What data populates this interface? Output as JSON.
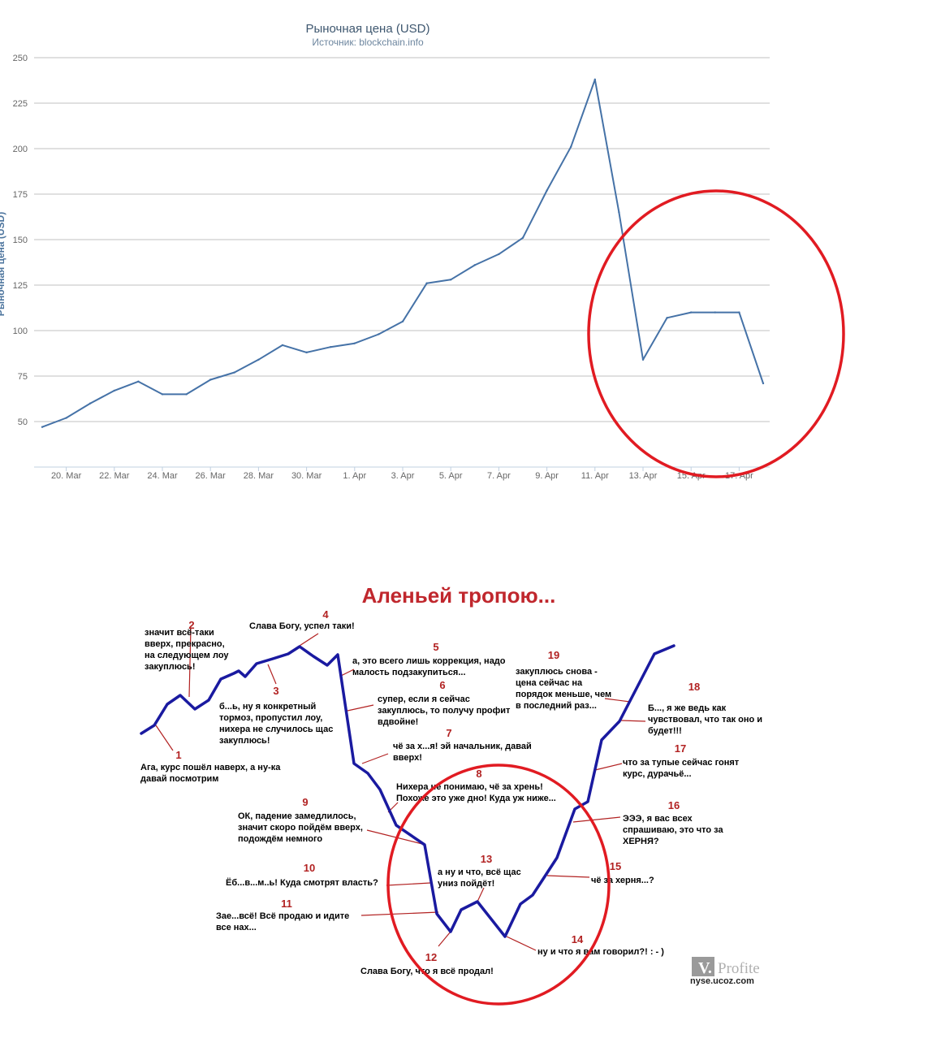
{
  "chart_data": {
    "type": "line",
    "title": "Рыночная цена (USD)",
    "subtitle": "Источник: blockchain.info",
    "ylabel": "Рыночная цена (USD)",
    "ylim": [
      25,
      250
    ],
    "yticks": [
      50,
      75,
      100,
      125,
      150,
      175,
      200,
      225,
      250
    ],
    "grid": true,
    "x_tick_labels": [
      "20. Mar",
      "22. Mar",
      "24. Mar",
      "26. Mar",
      "28. Mar",
      "30. Mar",
      "1. Apr",
      "3. Apr",
      "5. Apr",
      "7. Apr",
      "9. Apr",
      "11. Apr",
      "13. Apr",
      "15. Apr",
      "17. Apr"
    ],
    "series": [
      {
        "color": "#4572a7",
        "x": [
          "19. Mar",
          "20. Mar",
          "21. Mar",
          "22. Mar",
          "23. Mar",
          "24. Mar",
          "25. Mar",
          "26. Mar",
          "27. Mar",
          "28. Mar",
          "29. Mar",
          "30. Mar",
          "31. Mar",
          "1. Apr",
          "2. Apr",
          "3. Apr",
          "4. Apr",
          "5. Apr",
          "6. Apr",
          "7. Apr",
          "8. Apr",
          "9. Apr",
          "10. Apr",
          "11. Apr",
          "12. Apr",
          "13. Apr",
          "14. Apr",
          "15. Apr",
          "16. Apr",
          "17. Apr",
          "18. Apr"
        ],
        "values": [
          47,
          52,
          60,
          67,
          72,
          65,
          65,
          73,
          77,
          84,
          92,
          88,
          91,
          93,
          98,
          105,
          126,
          128,
          136,
          142,
          151,
          177,
          201,
          238,
          165,
          84,
          107,
          110,
          110,
          110,
          71
        ]
      }
    ]
  },
  "highlight_color": "#e11b22",
  "meme": {
    "title": "Аленьей тропою...",
    "line_color": "#1a1aa0",
    "watermark_brand": "Profite",
    "watermark_url": "nyse.ucoz.com",
    "annotations": [
      {
        "num": "1",
        "lines": [
          "Ага, курс пошёл наверх, а ну-ка",
          "давай посмотрим"
        ]
      },
      {
        "num": "2",
        "lines": [
          "значит всё-таки",
          "вверх, прекрасно,",
          "на следующем лоу",
          "закуплюсь!"
        ]
      },
      {
        "num": "3",
        "lines": [
          "б...ь, ну я конкретный",
          "тормоз, пропустил лоу,",
          "нихера не случилось щас",
          "закуплюсь!"
        ]
      },
      {
        "num": "4",
        "lines": [
          "Слава Богу, успел таки!"
        ]
      },
      {
        "num": "5",
        "lines": [
          "а, это всего лишь коррекция, надо",
          "малость подзакупиться..."
        ]
      },
      {
        "num": "6",
        "lines": [
          "супер, если я сейчас",
          "закуплюсь, то получу профит",
          "вдвойне!"
        ]
      },
      {
        "num": "7",
        "lines": [
          "чё за х...я! эй начальник, давай",
          "вверх!"
        ]
      },
      {
        "num": "8",
        "lines": [
          "Нихера не понимаю, чё за хрень!",
          "Похоже это уже дно! Куда уж ниже..."
        ]
      },
      {
        "num": "9",
        "lines": [
          "ОК, падение замедлилось,",
          "значит скоро пойдём вверх,",
          "подождём немного"
        ]
      },
      {
        "num": "10",
        "lines": [
          "Ёб...в...м..ь! Куда смотрят власть?"
        ]
      },
      {
        "num": "11",
        "lines": [
          "Зае...всё! Всё продаю и идите",
          "все нах..."
        ]
      },
      {
        "num": "12",
        "lines": [
          "Слава Богу, что я всё продал!"
        ]
      },
      {
        "num": "13",
        "lines": [
          "а ну и что, всё щас",
          "униз пойдёт!"
        ]
      },
      {
        "num": "14",
        "lines": [
          "ну и что я вам говорил?! : - )"
        ]
      },
      {
        "num": "15",
        "lines": [
          "чё за херня...?"
        ]
      },
      {
        "num": "16",
        "lines": [
          "ЭЭЭ, я вас всех",
          "спрашиваю, это что за",
          "ХЕРНЯ?"
        ]
      },
      {
        "num": "17",
        "lines": [
          "что за тупые сейчас гонят",
          "курс, дурачьё..."
        ]
      },
      {
        "num": "18",
        "lines": [
          "Б..., я же ведь как",
          "чувствовал, что так оно и",
          "будет!!!"
        ]
      },
      {
        "num": "19",
        "lines": [
          "закуплюсь снова -",
          "цена сейчас на",
          "порядок меньше, чем",
          "в последний раз..."
        ]
      }
    ]
  }
}
